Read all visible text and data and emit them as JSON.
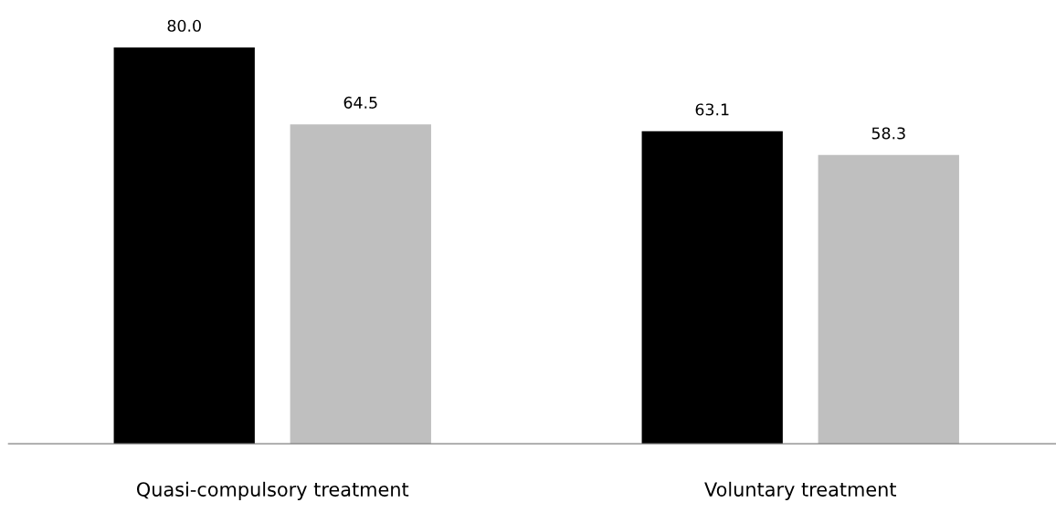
{
  "chart_data": {
    "type": "bar",
    "categories": [
      "Quasi-compulsory treatment",
      "Voluntary treatment"
    ],
    "series": [
      {
        "color": "#000000",
        "values": [
          80.0,
          63.1
        ],
        "value_labels": [
          "80.0",
          "63.1"
        ]
      },
      {
        "color": "#bfbfbf",
        "values": [
          64.5,
          58.3
        ],
        "value_labels": [
          "64.5",
          "58.3"
        ]
      }
    ],
    "grid": false,
    "legend": false
  }
}
